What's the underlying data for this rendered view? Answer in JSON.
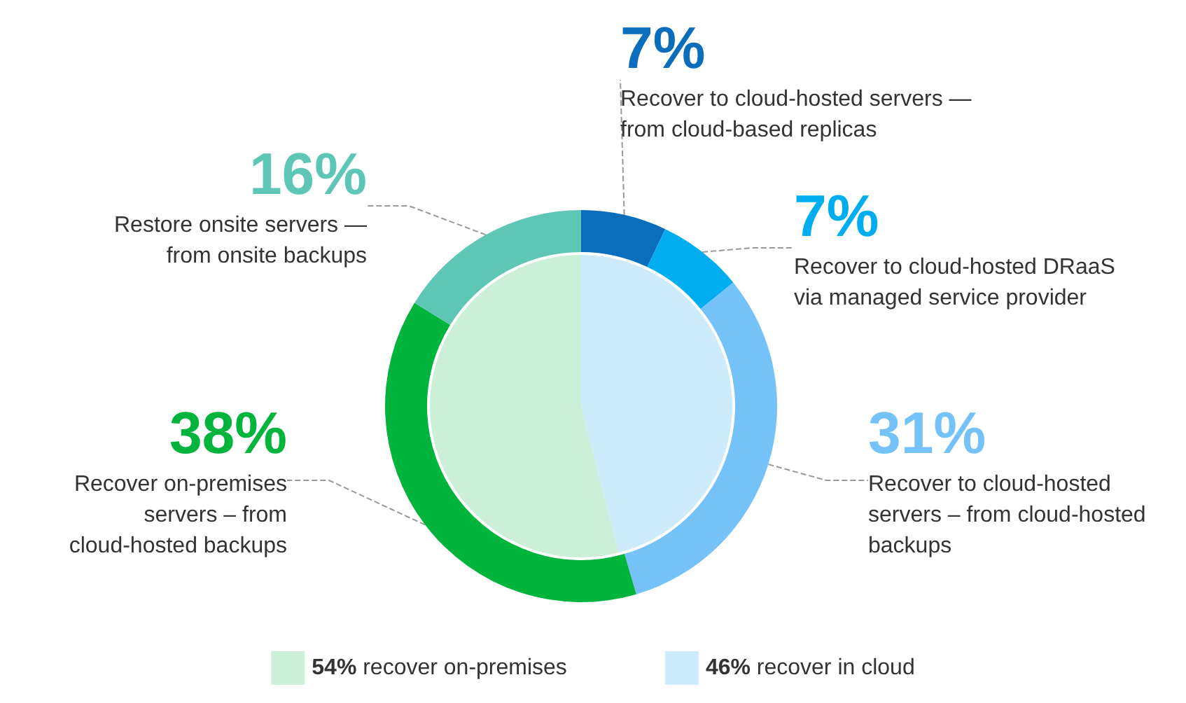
{
  "chart_data": [
    {
      "type": "donut",
      "categories": [
        "Recover to cloud-hosted servers — from cloud-based replicas",
        "Recover to cloud-hosted DRaaS via managed service provider",
        "Recover to cloud-hosted servers – from cloud-hosted backups",
        "Recover on-premises servers – from cloud-hosted backups",
        "Restore onsite servers — from onsite backups"
      ],
      "values": [
        7,
        7,
        31,
        38,
        16
      ],
      "value_labels": [
        "7%",
        "7%",
        "31%",
        "38%",
        "16%"
      ],
      "colors": [
        "#0a6ebd",
        "#00aeef",
        "#74c2f8",
        "#00b43c",
        "#5ec6b5"
      ]
    },
    {
      "type": "pie",
      "legend": "bottom",
      "categories": [
        "46% recover in cloud",
        "54% recover on-premises"
      ],
      "values": [
        46,
        54
      ],
      "colors": [
        "#cdebfb",
        "#cbefd8"
      ]
    }
  ]
}
